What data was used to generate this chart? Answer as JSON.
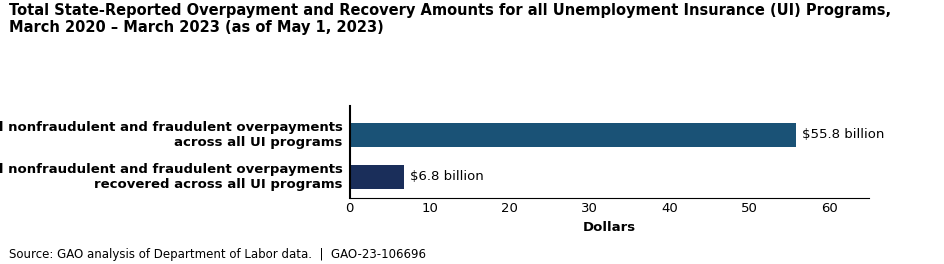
{
  "title_line1": "Total State-Reported Overpayment and Recovery Amounts for all Unemployment Insurance (UI) Programs,",
  "title_line2": "March 2020 – March 2023 (as of May 1, 2023)",
  "categories": [
    "Total nonfraudulent and fraudulent overpayments\nacross all UI programs",
    "Total nonfraudulent and fraudulent overpayments\nrecovered across all UI programs"
  ],
  "values": [
    55.8,
    6.8
  ],
  "bar_colors": [
    "#1a5276",
    "#1a2e5a"
  ],
  "bar_labels": [
    "$55.8 billion",
    "$6.8 billion"
  ],
  "xlabel": "Dollars",
  "xlim": [
    0,
    65
  ],
  "xticks": [
    0,
    10,
    20,
    30,
    40,
    50,
    60
  ],
  "footnote": "Source: GAO analysis of Department of Labor data.  |  GAO-23-106696",
  "background_color": "#ffffff",
  "title_fontsize": 10.5,
  "label_fontsize": 9.5,
  "tick_fontsize": 9.5,
  "footnote_fontsize": 8.5,
  "bar_label_fontsize": 9.5
}
